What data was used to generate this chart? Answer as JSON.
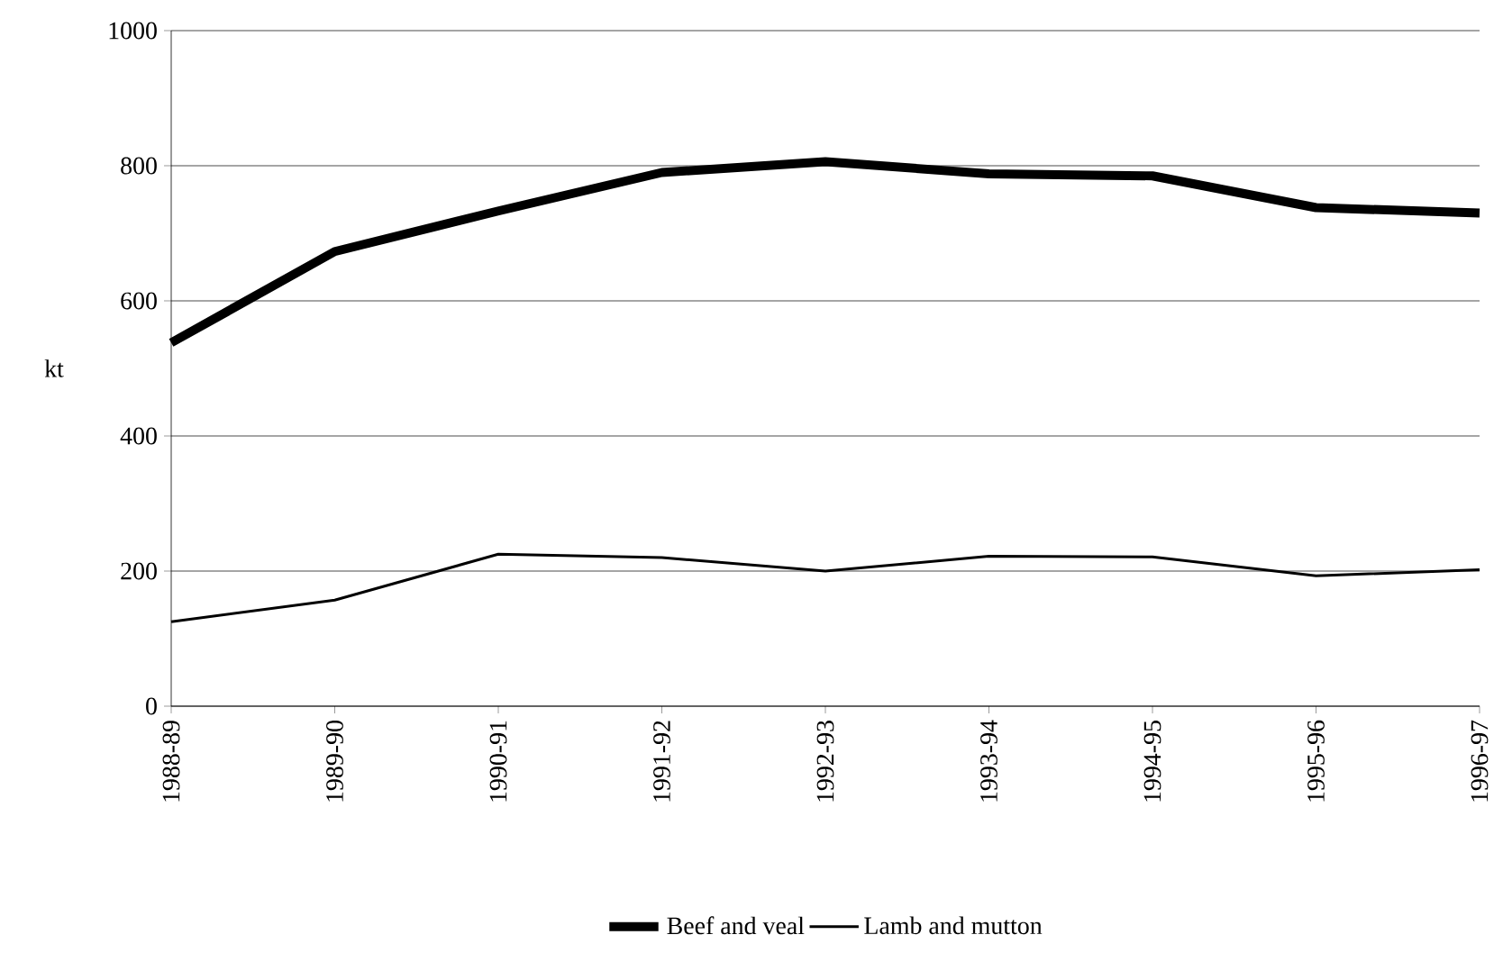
{
  "chart_data": {
    "type": "line",
    "ylabel": "kt",
    "categories": [
      "1988-89",
      "1989-90",
      "1990-91",
      "1991-92",
      "1992-93",
      "1993-94",
      "1994-95",
      "1995-96",
      "1996-97"
    ],
    "series": [
      {
        "name": "Beef and veal",
        "color": "#000000",
        "values": [
          538,
          673,
          733,
          790,
          806,
          788,
          785,
          738,
          730
        ]
      },
      {
        "name": "Lamb and mutton",
        "color": "#000000",
        "values": [
          125,
          157,
          225,
          220,
          200,
          222,
          221,
          193,
          202
        ]
      }
    ],
    "ylim": [
      0,
      1000
    ],
    "yticks": [
      0,
      200,
      400,
      600,
      800,
      1000
    ],
    "grid": "y",
    "legend": "bottom",
    "marker": "none",
    "line_style": "solid"
  }
}
